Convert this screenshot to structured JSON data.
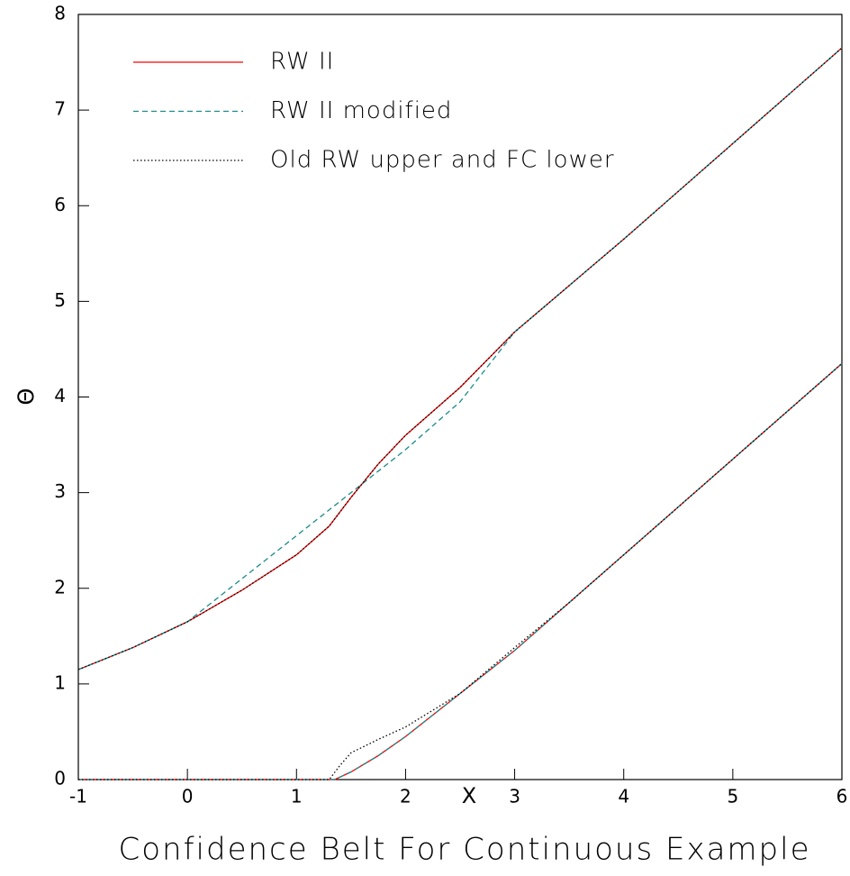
{
  "chart_data": {
    "type": "line",
    "title": "Confidence Belt For Continuous Example",
    "x_label": "X",
    "y_label": "Θ",
    "xlim": [
      -1,
      6
    ],
    "ylim": [
      0,
      8
    ],
    "xticks": [
      -1,
      0,
      1,
      2,
      3,
      4,
      5,
      6
    ],
    "yticks": [
      0,
      1,
      2,
      3,
      4,
      5,
      6,
      7,
      8
    ],
    "legend": "upper left",
    "series": [
      {
        "name": "RW II",
        "color": "#ff0000",
        "dash": "solid",
        "x": [
          -1,
          -0.5,
          0,
          0.5,
          1,
          1.3,
          1.5,
          1.75,
          2,
          2.5,
          3,
          4,
          5,
          6,
          null,
          -1,
          1.35,
          1.5,
          1.75,
          2,
          2.5,
          3,
          3.5,
          4,
          5,
          6
        ],
        "values": [
          1.15,
          1.38,
          1.65,
          1.98,
          2.35,
          2.65,
          2.95,
          3.3,
          3.6,
          4.1,
          4.68,
          5.65,
          6.65,
          7.65,
          null,
          0,
          0,
          0.08,
          0.25,
          0.45,
          0.9,
          1.35,
          1.85,
          2.35,
          3.35,
          4.35
        ]
      },
      {
        "name": "RW II modified",
        "color": "#1a8a8a",
        "dash": "dashed",
        "x": [
          -1,
          -0.5,
          0,
          0.5,
          1,
          1.5,
          2,
          2.5,
          3,
          4,
          5,
          6,
          null,
          -1,
          1.35,
          1.5,
          1.75,
          2,
          2.5,
          3,
          3.5,
          4,
          5,
          6
        ],
        "values": [
          1.15,
          1.38,
          1.65,
          2.1,
          2.55,
          3.0,
          3.45,
          3.95,
          4.68,
          5.65,
          6.65,
          7.65,
          null,
          0,
          0,
          0.08,
          0.25,
          0.45,
          0.9,
          1.35,
          1.85,
          2.35,
          3.35,
          4.35
        ]
      },
      {
        "name": "Old RW upper and FC lower",
        "color": "#000000",
        "dash": "dotted",
        "x": [
          -1,
          -0.5,
          0,
          0.5,
          1,
          1.3,
          1.5,
          1.75,
          2,
          2.5,
          3,
          4,
          5,
          6,
          null,
          -1,
          1.3,
          1.4,
          1.5,
          1.75,
          2,
          2.5,
          3,
          3.5,
          4,
          5,
          6
        ],
        "values": [
          1.15,
          1.38,
          1.65,
          1.98,
          2.35,
          2.65,
          2.95,
          3.3,
          3.6,
          4.1,
          4.68,
          5.65,
          6.65,
          7.65,
          null,
          0,
          0,
          0.15,
          0.28,
          0.42,
          0.55,
          0.9,
          1.38,
          1.85,
          2.35,
          3.35,
          4.35
        ]
      }
    ]
  }
}
